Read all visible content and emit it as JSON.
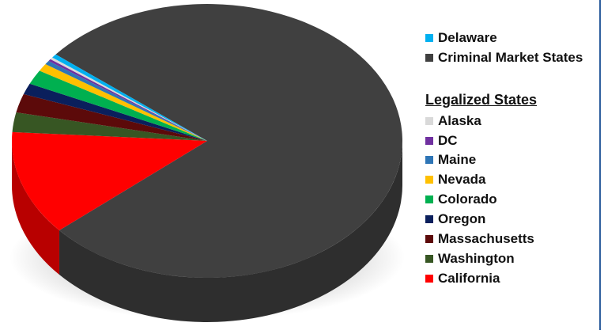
{
  "chart_data": {
    "type": "pie",
    "title": "",
    "slices": [
      {
        "label": "Criminal Market States",
        "value": 77.4,
        "color": "#404040"
      },
      {
        "label": "California",
        "value": 12.3,
        "color": "#ff0000"
      },
      {
        "label": "Washington",
        "value": 2.3,
        "color": "#375623"
      },
      {
        "label": "Massachusetts",
        "value": 2.2,
        "color": "#5c0a0a"
      },
      {
        "label": "Oregon",
        "value": 1.3,
        "color": "#0a1f5c"
      },
      {
        "label": "Colorado",
        "value": 1.7,
        "color": "#00b050"
      },
      {
        "label": "Nevada",
        "value": 0.9,
        "color": "#ffc000"
      },
      {
        "label": "Maine",
        "value": 0.45,
        "color": "#2e75b6"
      },
      {
        "label": "DC",
        "value": 0.25,
        "color": "#7030a0"
      },
      {
        "label": "Alaska",
        "value": 0.25,
        "color": "#d9d9d9"
      },
      {
        "label": "Delaware",
        "value": 0.45,
        "color": "#00b0f0"
      }
    ]
  },
  "legend": {
    "top_items": [
      {
        "label": "Delaware",
        "color": "#00b0f0"
      },
      {
        "label": "Criminal Market States",
        "color": "#404040"
      }
    ],
    "heading": "Legalized States",
    "legal_items": [
      {
        "label": "Alaska",
        "color": "#d9d9d9"
      },
      {
        "label": "DC",
        "color": "#7030a0"
      },
      {
        "label": "Maine",
        "color": "#2e75b6"
      },
      {
        "label": "Nevada",
        "color": "#ffc000"
      },
      {
        "label": "Colorado",
        "color": "#00b050"
      },
      {
        "label": "Oregon",
        "color": "#0a1f5c"
      },
      {
        "label": "Massachusetts",
        "color": "#5c0a0a"
      },
      {
        "label": "Washington",
        "color": "#375623"
      },
      {
        "label": "California",
        "color": "#ff0000"
      }
    ]
  }
}
